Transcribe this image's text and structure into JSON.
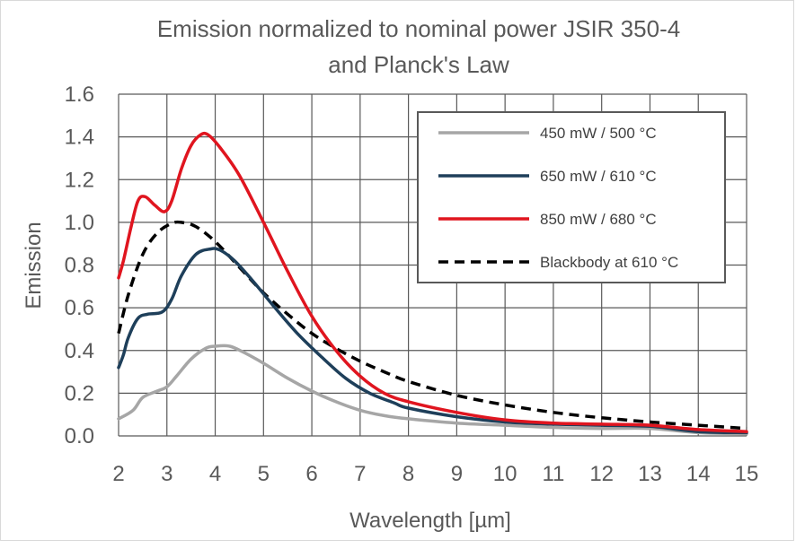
{
  "chart_data": {
    "type": "line",
    "title": [
      "Emission normalized to nominal power JSIR 350-4",
      "and Planck's Law"
    ],
    "xlabel": "Wavelength [µm]",
    "ylabel": "Emission",
    "xlim": [
      2,
      15
    ],
    "ylim": [
      0,
      1.6
    ],
    "xticks": [
      "2",
      "3",
      "4",
      "5",
      "6",
      "7",
      "8",
      "9",
      "10",
      "11",
      "12",
      "13",
      "14",
      "15"
    ],
    "yticks": [
      "0.0",
      "0.2",
      "0.4",
      "0.6",
      "0.8",
      "1.0",
      "1.2",
      "1.4",
      "1.6"
    ],
    "grid": true,
    "legend_position": "top-right",
    "series": [
      {
        "name": "450 mW / 500 °C",
        "color": "#a6a6a6",
        "dash": "solid",
        "points": [
          [
            2,
            0.08
          ],
          [
            2.3,
            0.12
          ],
          [
            2.5,
            0.18
          ],
          [
            2.8,
            0.21
          ],
          [
            3.0,
            0.23
          ],
          [
            3.2,
            0.28
          ],
          [
            3.5,
            0.36
          ],
          [
            3.8,
            0.41
          ],
          [
            4.0,
            0.42
          ],
          [
            4.3,
            0.42
          ],
          [
            4.6,
            0.39
          ],
          [
            5.0,
            0.34
          ],
          [
            5.5,
            0.27
          ],
          [
            6.0,
            0.21
          ],
          [
            6.5,
            0.16
          ],
          [
            7.0,
            0.12
          ],
          [
            7.5,
            0.095
          ],
          [
            8.0,
            0.08
          ],
          [
            9.0,
            0.06
          ],
          [
            10.0,
            0.05
          ],
          [
            11.0,
            0.04
          ],
          [
            12.0,
            0.035
          ],
          [
            13.0,
            0.035
          ],
          [
            14.0,
            0.015
          ],
          [
            15.0,
            0.01
          ]
        ]
      },
      {
        "name": "650 mW / 610 °C",
        "color": "#1e3f5a",
        "dash": "solid",
        "points": [
          [
            2,
            0.32
          ],
          [
            2.1,
            0.38
          ],
          [
            2.2,
            0.46
          ],
          [
            2.4,
            0.55
          ],
          [
            2.6,
            0.57
          ],
          [
            2.9,
            0.58
          ],
          [
            3.1,
            0.64
          ],
          [
            3.3,
            0.75
          ],
          [
            3.6,
            0.85
          ],
          [
            3.9,
            0.875
          ],
          [
            4.1,
            0.87
          ],
          [
            4.4,
            0.82
          ],
          [
            4.8,
            0.72
          ],
          [
            5.2,
            0.61
          ],
          [
            5.7,
            0.48
          ],
          [
            6.2,
            0.37
          ],
          [
            6.7,
            0.27
          ],
          [
            7.2,
            0.2
          ],
          [
            7.7,
            0.155
          ],
          [
            8.0,
            0.13
          ],
          [
            9.0,
            0.09
          ],
          [
            10.0,
            0.065
          ],
          [
            11.0,
            0.055
          ],
          [
            12.0,
            0.05
          ],
          [
            13.0,
            0.045
          ],
          [
            14.0,
            0.02
          ],
          [
            15.0,
            0.015
          ]
        ]
      },
      {
        "name": "850 mW / 680 °C",
        "color": "#e0151f",
        "dash": "solid",
        "points": [
          [
            2,
            0.74
          ],
          [
            2.1,
            0.82
          ],
          [
            2.25,
            0.97
          ],
          [
            2.4,
            1.1
          ],
          [
            2.55,
            1.12
          ],
          [
            2.75,
            1.08
          ],
          [
            2.95,
            1.05
          ],
          [
            3.1,
            1.1
          ],
          [
            3.3,
            1.25
          ],
          [
            3.5,
            1.36
          ],
          [
            3.7,
            1.41
          ],
          [
            3.85,
            1.41
          ],
          [
            4.1,
            1.35
          ],
          [
            4.5,
            1.22
          ],
          [
            5.0,
            1.0
          ],
          [
            5.5,
            0.77
          ],
          [
            6.0,
            0.56
          ],
          [
            6.5,
            0.4
          ],
          [
            7.0,
            0.28
          ],
          [
            7.5,
            0.2
          ],
          [
            8.0,
            0.16
          ],
          [
            9.0,
            0.11
          ],
          [
            10.0,
            0.075
          ],
          [
            11.0,
            0.06
          ],
          [
            12.0,
            0.055
          ],
          [
            13.0,
            0.05
          ],
          [
            14.0,
            0.03
          ],
          [
            15.0,
            0.02
          ]
        ]
      },
      {
        "name": "Blackbody at 610 °C",
        "color": "#000000",
        "dash": "dashed",
        "points": [
          [
            2,
            0.48
          ],
          [
            2.2,
            0.66
          ],
          [
            2.5,
            0.85
          ],
          [
            2.8,
            0.95
          ],
          [
            3.1,
            0.995
          ],
          [
            3.3,
            1.0
          ],
          [
            3.6,
            0.98
          ],
          [
            4.0,
            0.91
          ],
          [
            4.5,
            0.79
          ],
          [
            5.0,
            0.67
          ],
          [
            5.5,
            0.57
          ],
          [
            6.0,
            0.48
          ],
          [
            6.5,
            0.41
          ],
          [
            7.0,
            0.35
          ],
          [
            7.5,
            0.3
          ],
          [
            8.0,
            0.255
          ],
          [
            9.0,
            0.19
          ],
          [
            10.0,
            0.145
          ],
          [
            11.0,
            0.11
          ],
          [
            12.0,
            0.085
          ],
          [
            13.0,
            0.065
          ],
          [
            14.0,
            0.05
          ],
          [
            15.0,
            0.035
          ]
        ]
      }
    ]
  }
}
